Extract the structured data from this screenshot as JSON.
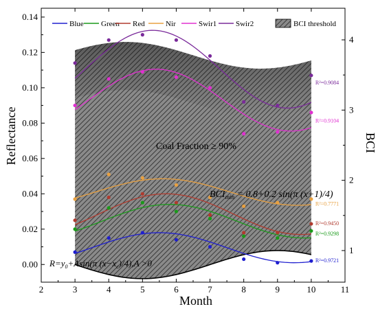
{
  "chart_data": {
    "type": "scatter",
    "xlabel": "Month",
    "ylabel": "Reflectance",
    "y2label": "BCI",
    "xlim": [
      2,
      11
    ],
    "ylim": [
      -0.01,
      0.145
    ],
    "y2lim": [
      0.55,
      4.45
    ],
    "xticks": [
      "2",
      "3",
      "4",
      "5",
      "6",
      "7",
      "8",
      "9",
      "10",
      "11"
    ],
    "yticks": [
      "0.00",
      "0.02",
      "0.04",
      "0.06",
      "0.08",
      "0.10",
      "0.12",
      "0.14"
    ],
    "y2ticks": [
      "1",
      "2",
      "3",
      "4"
    ],
    "legend_position": "top",
    "series": [
      {
        "name": "Blue",
        "color": "#1f1fcf",
        "x": [
          3,
          4,
          5,
          6,
          7,
          8,
          9,
          10
        ],
        "y": [
          0.007,
          0.015,
          0.018,
          0.014,
          0.01,
          0.003,
          0.001,
          0.002
        ],
        "fit": [
          0.0095,
          0.0085,
          3.5
        ],
        "r2_label": "R²=0.9721",
        "r2_y": 0.0025
      },
      {
        "name": "Green",
        "color": "#1a9a1a",
        "x": [
          3,
          4,
          5,
          6,
          7,
          8,
          9,
          10
        ],
        "y": [
          0.02,
          0.032,
          0.035,
          0.03,
          0.026,
          0.016,
          0.015,
          0.019
        ],
        "fit": [
          0.0245,
          0.0095,
          3.8
        ],
        "r2_label": "R²=0.9298",
        "r2_y": 0.0175
      },
      {
        "name": "Red",
        "color": "#b03a2e",
        "x": [
          3,
          4,
          5,
          6,
          7,
          8,
          9,
          10
        ],
        "y": [
          0.025,
          0.038,
          0.04,
          0.035,
          0.028,
          0.018,
          0.018,
          0.023
        ],
        "fit": [
          0.0285,
          0.0115,
          3.7
        ],
        "r2_label": "R²=0.9450",
        "r2_y": 0.0235
      },
      {
        "name": "Nir",
        "color": "#e8a040",
        "x": [
          3,
          4,
          5,
          6,
          7,
          8,
          9,
          10
        ],
        "y": [
          0.037,
          0.051,
          0.049,
          0.045,
          0.038,
          0.033,
          0.035,
          0.037
        ],
        "fit": [
          0.041,
          0.0075,
          3.6
        ],
        "r2_label": "R²=0.7771",
        "r2_y": 0.0345
      },
      {
        "name": "Swir1",
        "color": "#e030d0",
        "x": [
          3,
          4,
          5,
          6,
          7,
          8,
          9,
          10
        ],
        "y": [
          0.09,
          0.105,
          0.109,
          0.106,
          0.1,
          0.074,
          0.075,
          0.086
        ],
        "fit": [
          0.093,
          0.0175,
          3.4
        ],
        "r2_label": "R²=0.9104",
        "r2_y": 0.0815
      },
      {
        "name": "Swir2",
        "color": "#7a2a9a",
        "x": [
          3,
          4,
          5,
          6,
          7,
          8,
          9,
          10
        ],
        "y": [
          0.114,
          0.127,
          0.13,
          0.127,
          0.118,
          0.092,
          0.09,
          0.107
        ],
        "fit": [
          0.1105,
          0.022,
          3.3
        ],
        "r2_label": "R²=0.9084",
        "r2_y": 0.103
      }
    ],
    "bci_threshold": {
      "name": "BCI threshold",
      "x_range": [
        3,
        10
      ],
      "lower_formula": "BCI_min = 0.8 + 0.2 sin(pi (x+1)/4)",
      "upper_baseline": 3.78,
      "upper_amplitude": 0.19,
      "upper_x0": 2.5
    },
    "annotations": {
      "coal_fraction": "Coal Fraction ≥ 90%",
      "bci_formula_lhs": "BCI",
      "bci_formula_sub": "min",
      "bci_formula_rhs": " = 0.8+0.2 sin(π (x+1)/4)",
      "model_formula_a": "R=y",
      "model_formula_sub1": "0",
      "model_formula_b": "+Asin(π (x−x",
      "model_formula_sub2": "c",
      "model_formula_c": ")/4),A >0"
    }
  }
}
